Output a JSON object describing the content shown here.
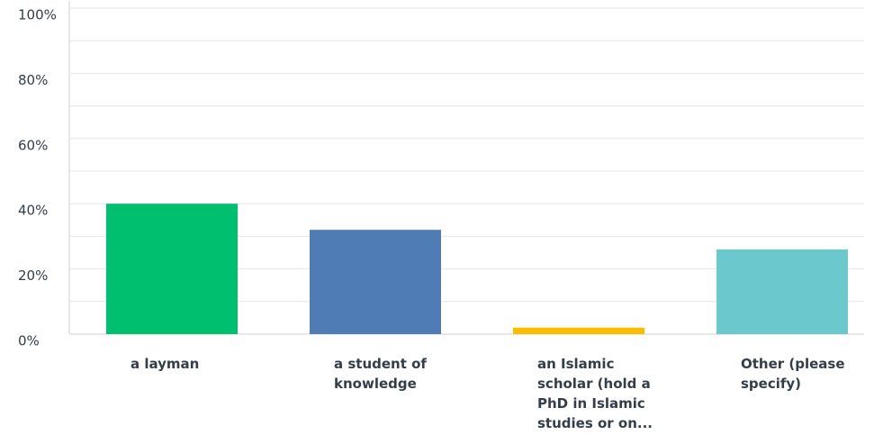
{
  "chart_data": {
    "type": "bar",
    "categories": [
      "a layman",
      "a student of knowledge",
      "an Islamic scholar (hold a PhD in Islamic studies or on...",
      "Other (please specify)"
    ],
    "values": [
      40,
      32,
      2,
      26
    ],
    "colors": [
      "#00bf6f",
      "#507cb6",
      "#f9be00",
      "#6bc8cd"
    ],
    "ylim": [
      0,
      100
    ],
    "yticks": [
      {
        "value": 0,
        "label": "0%"
      },
      {
        "value": 20,
        "label": "20%"
      },
      {
        "value": 40,
        "label": "40%"
      },
      {
        "value": 60,
        "label": "60%"
      },
      {
        "value": 80,
        "label": "80%"
      },
      {
        "value": 100,
        "label": "100%"
      }
    ],
    "minor_yticks": [
      10,
      30,
      50,
      70,
      90
    ],
    "grid": true
  }
}
